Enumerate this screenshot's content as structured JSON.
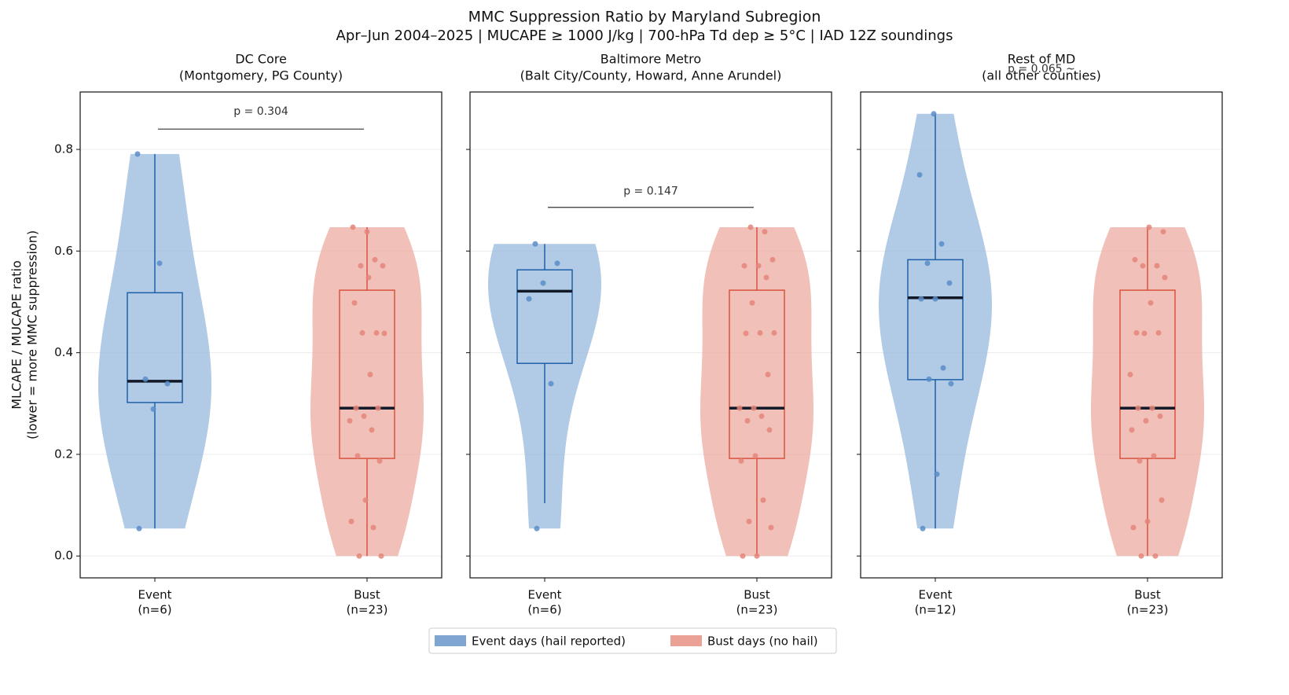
{
  "title": "MMC Suppression Ratio by Maryland Subregion",
  "subtitle": "Apr–Jun 2004–2025  |  MUCAPE ≥ 1000 J/kg  |  700-hPa Td dep ≥ 5°C  |  IAD 12Z soundings",
  "legend": {
    "position": "bottom",
    "entries": [
      {
        "label": "Event days (hail reported)",
        "color": "#7fa6d3"
      },
      {
        "label": "Bust days (no hail)",
        "color": "#eba195"
      }
    ]
  },
  "chart_data": [
    {
      "type": "violin",
      "title": [
        "DC Core",
        "(Montgomery, PG County)"
      ],
      "ylabel": [
        "MLCAPE / MUCAPE ratio",
        "(lower = more MMC suppression)"
      ],
      "categories": [
        [
          "Event",
          "(n=6)"
        ],
        [
          "Bust",
          "(n=23)"
        ]
      ],
      "ylim": [
        -0.043,
        0.913
      ],
      "yticks": [
        {
          "value": 0,
          "label": "0.0"
        },
        0.2,
        0.4,
        0.6,
        0.8
      ],
      "grid": true,
      "series": [
        {
          "color": "#9dbde0",
          "box_color": "#1f5fa8",
          "point_color": "#5b8dc8",
          "values": [
            0.791,
            0.576,
            0.348,
            0.339,
            0.289,
            0.054
          ],
          "box": {
            "whislo": 0.054,
            "q1": 0.302,
            "median": 0.344,
            "q3": 0.518,
            "whishi": 0.791
          }
        },
        {
          "color": "#eeb0a6",
          "box_color": "#d9533f",
          "point_color": "#e5857a",
          "values": [
            0.638,
            0.647,
            0.583,
            0.571,
            0.571,
            0.548,
            0.498,
            0.439,
            0.439,
            0.438,
            0.357,
            0.291,
            0.291,
            0.275,
            0.266,
            0.248,
            0.197,
            0.187,
            0.11,
            0.068,
            0.056,
            0,
            0
          ],
          "box": {
            "whislo": 0,
            "q1": 0.192,
            "median": 0.291,
            "q3": 0.523,
            "whishi": 0.647
          }
        }
      ],
      "annotation": {
        "text": "p = 0.304",
        "y": 0.874,
        "bracket": 0.84
      }
    },
    {
      "type": "violin",
      "title": [
        "Baltimore Metro",
        "(Balt City/County, Howard, Anne Arundel)"
      ],
      "ytick_labels": false,
      "categories": [
        [
          "Event",
          "(n=6)"
        ],
        [
          "Bust",
          "(n=23)"
        ]
      ],
      "ylim": [
        -0.043,
        0.913
      ],
      "yticks": [
        0,
        0.2,
        0.4,
        0.6,
        0.8
      ],
      "grid": true,
      "series": [
        {
          "color": "#9dbde0",
          "box_color": "#1f5fa8",
          "point_color": "#5b8dc8",
          "values": [
            0.614,
            0.576,
            0.537,
            0.506,
            0.339,
            0.054
          ],
          "box": {
            "whislo": 0.104,
            "q1": 0.379,
            "median": 0.521,
            "q3": 0.563,
            "whishi": 0.614
          }
        },
        {
          "color": "#eeb0a6",
          "box_color": "#d9533f",
          "point_color": "#e5857a",
          "values": [
            0.638,
            0.647,
            0.583,
            0.571,
            0.571,
            0.548,
            0.498,
            0.439,
            0.439,
            0.438,
            0.357,
            0.291,
            0.291,
            0.275,
            0.266,
            0.248,
            0.197,
            0.187,
            0.11,
            0.068,
            0.056,
            0,
            0
          ],
          "box": {
            "whislo": 0,
            "q1": 0.192,
            "median": 0.291,
            "q3": 0.523,
            "whishi": 0.647
          }
        }
      ],
      "annotation": {
        "text": "p = 0.147",
        "y": 0.717,
        "bracket": 0.686
      }
    },
    {
      "type": "violin",
      "title": [
        "Rest of MD",
        "(all other counties)"
      ],
      "ytick_labels": false,
      "categories": [
        [
          "Event",
          "(n=12)"
        ],
        [
          "Bust",
          "(n=23)"
        ]
      ],
      "ylim": [
        -0.043,
        0.913
      ],
      "yticks": [
        0,
        0.2,
        0.4,
        0.6,
        0.8
      ],
      "grid": true,
      "series": [
        {
          "color": "#9dbde0",
          "box_color": "#1f5fa8",
          "point_color": "#5b8dc8",
          "values": [
            0.87,
            0.75,
            0.614,
            0.576,
            0.537,
            0.506,
            0.506,
            0.37,
            0.348,
            0.339,
            0.161,
            0.054
          ],
          "box": {
            "whislo": 0.054,
            "q1": 0.347,
            "median": 0.508,
            "q3": 0.583,
            "whishi": 0.87
          }
        },
        {
          "color": "#eeb0a6",
          "box_color": "#d9533f",
          "point_color": "#e5857a",
          "values": [
            0.638,
            0.647,
            0.583,
            0.571,
            0.571,
            0.548,
            0.498,
            0.439,
            0.439,
            0.438,
            0.357,
            0.291,
            0.291,
            0.275,
            0.266,
            0.248,
            0.197,
            0.187,
            0.11,
            0.068,
            0.056,
            0,
            0
          ],
          "box": {
            "whislo": 0,
            "q1": 0.192,
            "median": 0.291,
            "q3": 0.523,
            "whishi": 0.647
          }
        }
      ],
      "annotation": {
        "text": "p = 0.065 ~",
        "y": 0.958
      }
    }
  ]
}
